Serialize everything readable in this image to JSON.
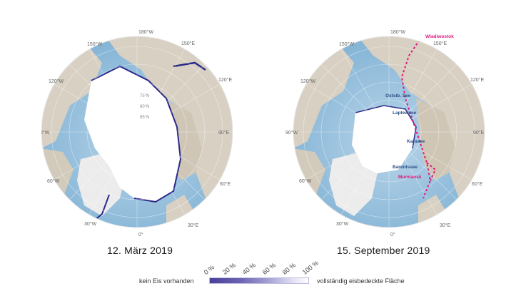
{
  "maps": [
    {
      "date": "12. März 2019",
      "lon_labels": [
        "180°W",
        "150°W",
        "120°W",
        "90°W",
        "60°W",
        "30°W",
        "0°",
        "30°E",
        "60°E",
        "90°E",
        "120°E",
        "150°E"
      ],
      "lat_labels": [
        "75°N",
        "80°N",
        "85°N"
      ]
    },
    {
      "date": "15. September 2019",
      "lon_labels": [
        "180°W",
        "150°W",
        "120°W",
        "90°W",
        "60°W",
        "30°W",
        "0°",
        "30°E",
        "60°E",
        "90°E",
        "120°E",
        "150°E"
      ],
      "places": [
        "Wladiwostok",
        "Ostsib. See",
        "Laptewsee",
        "Karasee",
        "Barentssee",
        "Murmansk"
      ],
      "route_color": "#e0197f"
    }
  ],
  "legend": {
    "left_label": "kein Eis vorhanden",
    "right_label": "vollständig eisbedeckte Fläche",
    "ticks": [
      "0 %",
      "20 %",
      "40 %",
      "60 %",
      "80 %",
      "100 %"
    ]
  },
  "colors": {
    "ocean": "#9cc3de",
    "land": "#d9d2c5",
    "ice": "#ffffff",
    "ice_edge": "#2a2a8a"
  }
}
